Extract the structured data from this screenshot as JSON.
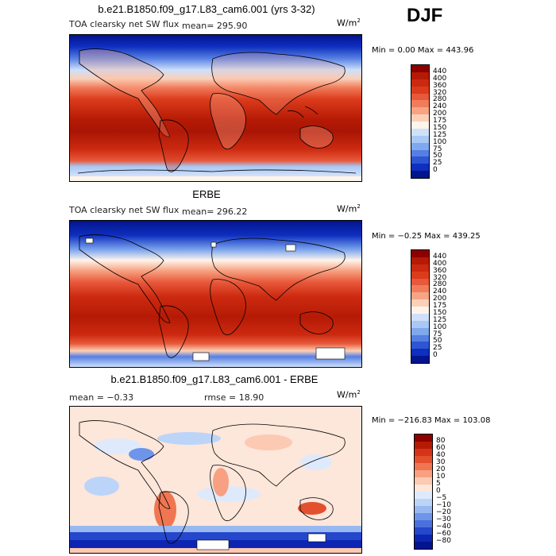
{
  "season": "DJF",
  "units": {
    "base": "W/m",
    "exp": "2"
  },
  "panel1": {
    "title": "b.e21.B1850.f09_g17.L83_cam6.001 (yrs 3-32)",
    "variable": "TOA clearsky net SW flux",
    "mean_text": "mean= 295.90",
    "minmax": "Min =    0.00 Max = 443.96"
  },
  "panel2": {
    "title": "ERBE",
    "variable": "TOA clearsky net SW flux",
    "mean_text": "mean= 296.22",
    "minmax": "Min =  −0.25 Max = 439.25"
  },
  "panel3": {
    "title": "b.e21.B1850.f09_g17.L83_cam6.001 - ERBE",
    "mean_text": "mean =  −0.33",
    "rmse_text": "rmse =  18.90",
    "minmax": "Min = −216.83 Max = 103.08"
  },
  "colorbar_abs": {
    "labels": [
      "440",
      "400",
      "360",
      "320",
      "280",
      "240",
      "200",
      "175",
      "150",
      "125",
      "100",
      "75",
      "50",
      "25",
      "0"
    ],
    "colors": [
      "#8c0000",
      "#b51a05",
      "#cc2a10",
      "#dc3c1c",
      "#e8583a",
      "#f07c5c",
      "#f7a484",
      "#fbd0b8",
      "#fff4ea",
      "#cfe0fa",
      "#a8c8f5",
      "#7fa8ee",
      "#567fe3",
      "#2e55d3",
      "#0e2fc0",
      "#02148e"
    ]
  },
  "colorbar_diff": {
    "labels": [
      "80",
      "60",
      "40",
      "30",
      "20",
      "10",
      "5",
      "0",
      "−5",
      "−10",
      "−20",
      "−30",
      "−40",
      "−60",
      "−80"
    ],
    "colors": [
      "#8c0000",
      "#b51a05",
      "#d43418",
      "#e4502e",
      "#f07652",
      "#f7a082",
      "#fcc9b3",
      "#fde6da",
      "#deeafc",
      "#bcd4f8",
      "#98b8f2",
      "#6f95ea",
      "#4a70de",
      "#2447cc",
      "#0c26b3",
      "#02148e"
    ]
  }
}
